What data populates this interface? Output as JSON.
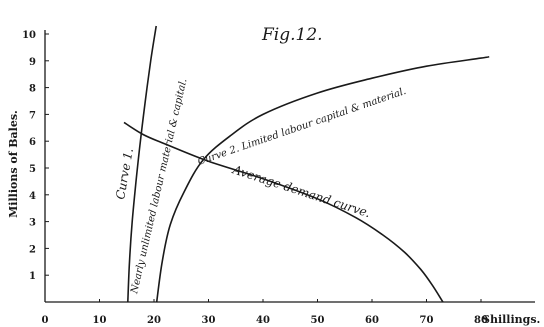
{
  "chart_data": {
    "type": "line",
    "title": "Fig.12.",
    "xlabel": "Shillings.",
    "ylabel": "Millions of Bales.",
    "xlim": [
      0,
      90
    ],
    "ylim": [
      0,
      10
    ],
    "x_ticks": [
      "0",
      "10",
      "20",
      "30",
      "40",
      "50",
      "60",
      "70",
      "80"
    ],
    "y_ticks": [
      "1",
      "2",
      "3",
      "4",
      "5",
      "6",
      "7",
      "8",
      "9",
      "10"
    ],
    "grid": false,
    "legend": "none",
    "series": [
      {
        "name": "Curve 1.",
        "sublabel": "Nearly unlimited labour material & capital.",
        "x": [
          15.2,
          15.5,
          16.0,
          16.7,
          17.5,
          18.4,
          19.4,
          20.4
        ],
        "y": [
          0,
          1.5,
          3.0,
          4.5,
          6.0,
          7.5,
          9.0,
          10.3
        ]
      },
      {
        "name": "Curve 2. Limited labour capital & material.",
        "x": [
          20.5,
          21.5,
          23.0,
          25.5,
          29.0,
          34.0,
          40.0,
          50.0,
          60.0,
          70.0,
          80.0,
          81.5
        ],
        "y": [
          0,
          1.5,
          2.9,
          4.1,
          5.3,
          6.2,
          7.0,
          7.8,
          8.35,
          8.8,
          9.1,
          9.15
        ]
      },
      {
        "name": "Average demand curve.",
        "x": [
          14.5,
          18.0,
          22.0,
          30.0,
          40.0,
          50.0,
          57.0,
          62.0,
          66.0,
          69.0,
          71.0,
          73.0
        ],
        "y": [
          6.7,
          6.25,
          5.9,
          5.25,
          4.6,
          3.85,
          3.15,
          2.5,
          1.85,
          1.2,
          0.65,
          0
        ]
      }
    ]
  }
}
